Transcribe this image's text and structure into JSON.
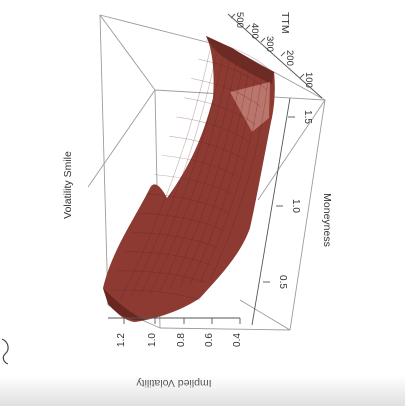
{
  "chart_data": {
    "type": "surface",
    "title": "Volatility Smile",
    "x_axis": {
      "label": "Moneyness",
      "ticks": [
        "0.5",
        "1.0",
        "1.5"
      ]
    },
    "y_axis": {
      "label": "TTM",
      "ticks": [
        "100",
        "200",
        "300",
        "400",
        "500"
      ]
    },
    "z_axis": {
      "label": "Implied Volatility",
      "ticks": [
        "0.4",
        "0.6",
        "0.8",
        "1.0",
        "1.2"
      ]
    },
    "surface_color": "#8c3a32",
    "rotation": "plot rotated 90 degrees clockwise",
    "ttm": [
      10,
      100,
      200,
      300,
      400,
      500
    ],
    "moneyness": [
      0.35,
      0.5,
      0.75,
      1.0,
      1.25,
      1.5,
      1.6
    ],
    "implied_volatility": [
      [
        1.05,
        0.78,
        0.55,
        0.62,
        0.48,
        0.42,
        0.48
      ],
      [
        0.95,
        0.7,
        0.5,
        0.48,
        0.43,
        0.44,
        0.52
      ],
      [
        0.88,
        0.64,
        0.47,
        0.42,
        0.4,
        0.45,
        0.55
      ],
      [
        0.84,
        0.6,
        0.45,
        0.4,
        0.4,
        0.47,
        0.58
      ],
      [
        0.82,
        0.58,
        0.44,
        0.4,
        0.41,
        0.48,
        0.6
      ],
      [
        0.8,
        0.57,
        0.44,
        0.4,
        0.42,
        0.5,
        0.62
      ]
    ]
  }
}
